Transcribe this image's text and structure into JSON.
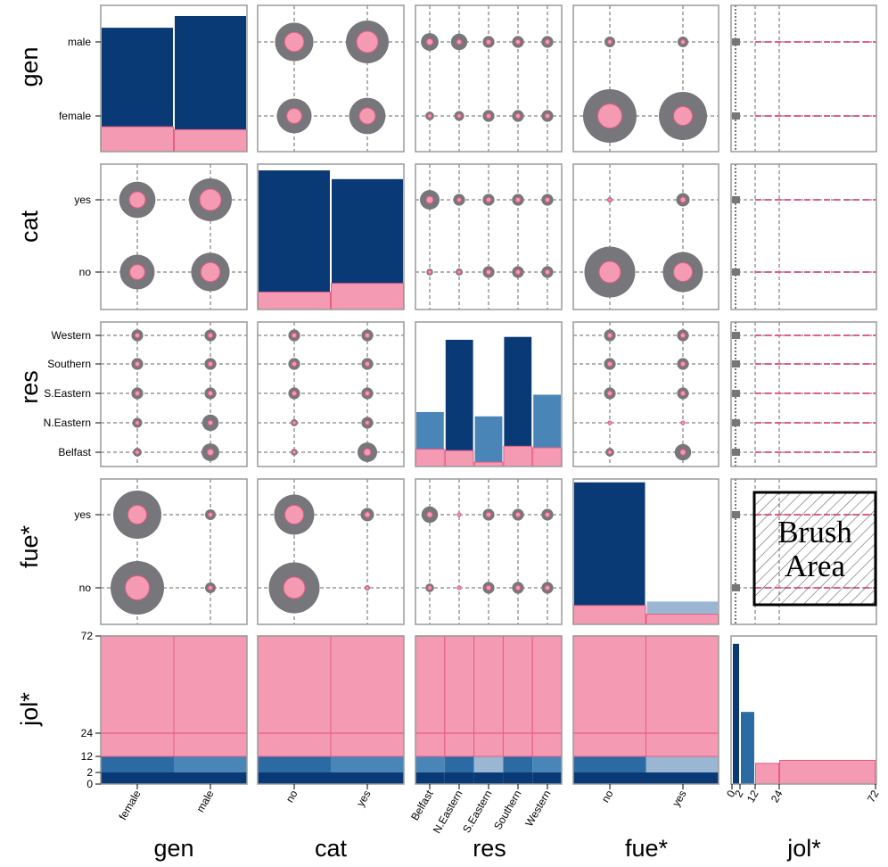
{
  "colors": {
    "navy": "#0a3a75",
    "blue_mid": "#2b6aa3",
    "blue_light": "#4a85b8",
    "blue_pale": "#9ab6d3",
    "pink": "#f49ab3",
    "pink_edge": "#e55c85",
    "gray_bubble": "#77777b",
    "frame": "#9a9a9a",
    "grid": "#666666"
  },
  "brush": {
    "label_line1": "Brush",
    "label_line2": "Area"
  },
  "chart_data": {
    "type": "scatterplot-matrix",
    "variables": [
      {
        "key": "gen",
        "label": "gen",
        "kind": "categorical",
        "levels": [
          "female",
          "male"
        ]
      },
      {
        "key": "cat",
        "label": "cat",
        "kind": "categorical",
        "levels": [
          "no",
          "yes"
        ]
      },
      {
        "key": "res",
        "label": "res",
        "kind": "categorical",
        "levels": [
          "Belfast",
          "N.Eastern",
          "S.Eastern",
          "Southern",
          "Western"
        ]
      },
      {
        "key": "fue",
        "label": "fue*",
        "kind": "categorical",
        "levels": [
          "no",
          "yes"
        ]
      },
      {
        "key": "jol",
        "label": "jol*",
        "kind": "continuous",
        "range": [
          0,
          72
        ],
        "ticks": [
          0,
          2,
          12,
          24,
          72
        ]
      }
    ],
    "diagonal": {
      "gen": {
        "totals": [
          0.85,
          0.93
        ],
        "highlighted": [
          0.17,
          0.15
        ]
      },
      "cat": {
        "totals": [
          0.96,
          0.9
        ],
        "highlighted": [
          0.12,
          0.18
        ]
      },
      "res": {
        "totals": [
          0.38,
          0.88,
          0.35,
          0.9,
          0.5
        ],
        "highlighted": [
          0.12,
          0.11,
          0.03,
          0.14,
          0.13
        ]
      },
      "fue": {
        "totals": [
          0.98,
          0.16
        ],
        "highlighted": [
          0.13,
          0.07
        ]
      },
      "jol": {
        "bins": [
          [
            0,
            2,
            0.95
          ],
          [
            2,
            12,
            0.49
          ],
          [
            12,
            24,
            0.14
          ],
          [
            24,
            72,
            0.16
          ]
        ],
        "highlighted_bins": [
          2,
          3
        ]
      }
    },
    "counts": {
      "gen_cat": {
        "total": [
          [
            0.65,
            0.68
          ],
          [
            0.72,
            0.8
          ]
        ],
        "highlighted": [
          [
            0.28,
            0.3
          ],
          [
            0.36,
            0.4
          ]
        ]
      },
      "gen_res": {
        "total": [
          [
            0.22,
            0.25
          ],
          [
            0.45,
            0.42
          ],
          [
            0.18,
            0.2
          ],
          [
            0.4,
            0.42
          ],
          [
            0.28,
            0.3
          ]
        ],
        "highlighted": [
          [
            0.1,
            0.1
          ],
          [
            0.16,
            0.12
          ],
          [
            0.08,
            0.07
          ],
          [
            0.14,
            0.12
          ],
          [
            0.1,
            0.1
          ]
        ]
      },
      "gen_fue": {
        "total": [
          [
            1.0,
            0.9
          ],
          [
            0.2,
            0.2
          ]
        ],
        "highlighted": [
          [
            0.45,
            0.35
          ],
          [
            0.08,
            0.08
          ]
        ]
      },
      "cat_res": {
        "total": [
          [
            0.17,
            0.18
          ],
          [
            0.5,
            0.3
          ],
          [
            0.22,
            0.12
          ],
          [
            0.37,
            0.47
          ],
          [
            0.14,
            0.35
          ]
        ],
        "highlighted": [
          [
            0.07,
            0.06
          ],
          [
            0.18,
            0.1
          ],
          [
            0.09,
            0.04
          ],
          [
            0.14,
            0.16
          ],
          [
            0.06,
            0.13
          ]
        ]
      },
      "cat_fue": {
        "total": [
          [
            0.95,
            0.75
          ],
          [
            0.1,
            0.25
          ]
        ],
        "highlighted": [
          [
            0.4,
            0.35
          ],
          [
            0.05,
            0.1
          ]
        ]
      },
      "res_fue": {
        "total": [
          [
            0.22,
            0.42,
            0.18,
            0.42,
            0.3
          ],
          [
            0.06,
            0.06,
            0.04,
            0.06,
            0.05
          ]
        ],
        "highlighted": [
          [
            0.1,
            0.14,
            0.07,
            0.14,
            0.1
          ],
          [
            0.04,
            0.04,
            0.03,
            0.04,
            0.04
          ]
        ]
      }
    },
    "jol_series": {
      "highlight_segments": [
        [
          12,
          72
        ],
        [
          12,
          15
        ],
        [
          12,
          72
        ]
      ],
      "note": "pink strips at each category level for jol between 12 and 72; gray dense strip near 0"
    },
    "jol_by_category_shares": {
      "levels_from_bottom": [
        "0-2",
        "2-12",
        "12-24",
        "24-72"
      ],
      "gen": [
        [
          0.01,
          0.16,
          0.26,
          0.57
        ],
        [
          0.01,
          0.16,
          0.26,
          0.57
        ]
      ],
      "cat": [
        [
          0.01,
          0.16,
          0.26,
          0.57
        ],
        [
          0.01,
          0.16,
          0.26,
          0.57
        ]
      ],
      "res": [
        [
          0.01,
          0.16,
          0.26,
          0.57
        ],
        [
          0.01,
          0.16,
          0.26,
          0.57
        ],
        [
          0.01,
          0.16,
          0.26,
          0.57
        ],
        [
          0.01,
          0.16,
          0.26,
          0.57
        ],
        [
          0.01,
          0.16,
          0.26,
          0.57
        ]
      ],
      "fue": [
        [
          0.01,
          0.16,
          0.26,
          0.57
        ],
        [
          0.01,
          0.16,
          0.26,
          0.57
        ]
      ]
    }
  }
}
